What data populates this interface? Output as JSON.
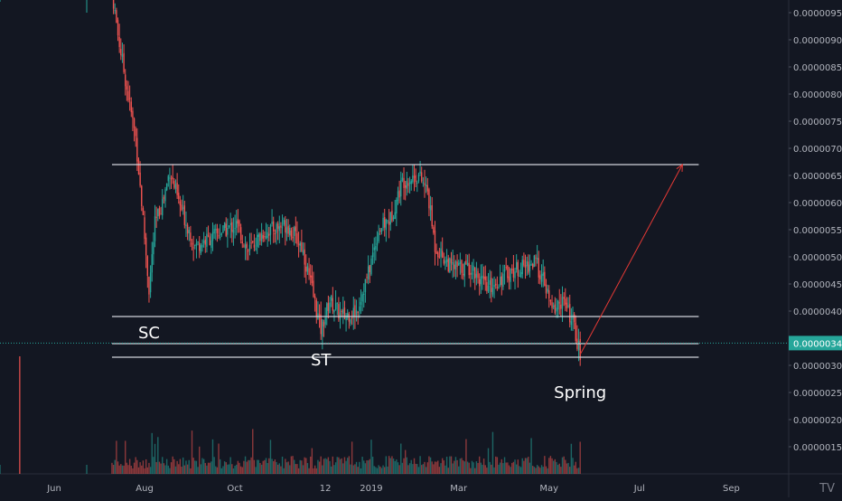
{
  "chart_data": {
    "type": "candlestick",
    "title": "",
    "y_axis": {
      "ticks": [
        "0.00000950",
        "0.00000900",
        "0.00000850",
        "0.00000800",
        "0.00000750",
        "0.00000700",
        "0.00000650",
        "0.00000600",
        "0.00000550",
        "0.00000500",
        "0.00000450",
        "0.00000400",
        "0.00000300",
        "0.00000250",
        "0.00000200",
        "0.00000150"
      ],
      "ylim": [
        1.3e-06,
        9.75e-06
      ],
      "current_price_label": "0.00000341",
      "current_price": 3.41e-06
    },
    "x_axis": {
      "ticks": [
        "Jun",
        "Aug",
        "Oct",
        "12",
        "2019",
        "Mar",
        "May",
        "Jul",
        "Sep"
      ]
    },
    "price_path": [
      [
        "2018-05-01",
        1.02e-05
      ],
      [
        "2018-07-10",
        9.9e-06
      ],
      [
        "2018-07-14",
        9.1e-06
      ],
      [
        "2018-07-20",
        8.1e-06
      ],
      [
        "2018-07-26",
        7.2e-06
      ],
      [
        "2018-07-30",
        6e-06
      ],
      [
        "2018-08-04",
        4.4e-06
      ],
      [
        "2018-08-08",
        5.6e-06
      ],
      [
        "2018-08-14",
        6.1e-06
      ],
      [
        "2018-08-18",
        6.6e-06
      ],
      [
        "2018-08-24",
        6e-06
      ],
      [
        "2018-09-04",
        5.2e-06
      ],
      [
        "2018-09-18",
        5.4e-06
      ],
      [
        "2018-10-02",
        5.6e-06
      ],
      [
        "2018-10-10",
        5.1e-06
      ],
      [
        "2018-10-20",
        5.45e-06
      ],
      [
        "2018-11-05",
        5.6e-06
      ],
      [
        "2018-11-15",
        5.2e-06
      ],
      [
        "2018-11-22",
        4.4e-06
      ],
      [
        "2018-11-28",
        3.65e-06
      ],
      [
        "2018-12-04",
        4.2e-06
      ],
      [
        "2018-12-12",
        3.9e-06
      ],
      [
        "2018-12-22",
        4e-06
      ],
      [
        "2018-12-30",
        4.7e-06
      ],
      [
        "2019-01-06",
        5.5e-06
      ],
      [
        "2019-01-14",
        5.7e-06
      ],
      [
        "2019-01-22",
        6.4e-06
      ],
      [
        "2019-02-02",
        6.5e-06
      ],
      [
        "2019-02-08",
        6.2e-06
      ],
      [
        "2019-02-13",
        5.2e-06
      ],
      [
        "2019-02-24",
        4.8e-06
      ],
      [
        "2019-03-10",
        4.8e-06
      ],
      [
        "2019-03-20",
        4.4e-06
      ],
      [
        "2019-04-03",
        4.7e-06
      ],
      [
        "2019-04-12",
        4.8e-06
      ],
      [
        "2019-04-22",
        4.9e-06
      ],
      [
        "2019-04-28",
        4.5e-06
      ],
      [
        "2019-05-03",
        4e-06
      ],
      [
        "2019-05-10",
        4.2e-06
      ],
      [
        "2019-05-17",
        3.8e-06
      ],
      [
        "2019-05-22",
        3.2e-06
      ]
    ],
    "horizontal_lines": [
      {
        "name": "range-top",
        "value": 6.7e-06
      },
      {
        "name": "sc-level",
        "value": 3.9e-06
      },
      {
        "name": "st-level",
        "value": 3.4e-06
      },
      {
        "name": "spring-level",
        "value": 3.15e-06
      }
    ],
    "annotations": [
      {
        "text": "SC",
        "date": "2018-08-04",
        "value": 3.6e-06
      },
      {
        "text": "ST",
        "date": "2018-11-28",
        "value": 3.1e-06
      },
      {
        "text": "Spring",
        "date": "2019-05-22",
        "value": 2.5e-06
      }
    ],
    "projection_arrow": {
      "from": [
        "2019-05-22",
        3.2e-06
      ],
      "to": [
        "2019-07-30",
        6.7e-06
      ]
    },
    "colors": {
      "background": "#131722",
      "up": "#26a69a",
      "down": "#ef5350",
      "level_line": "#d1d4dc",
      "current_price": "#26a69a",
      "arrow": "#e53935",
      "annotation": "#ffffff"
    }
  },
  "watermark": "TV"
}
